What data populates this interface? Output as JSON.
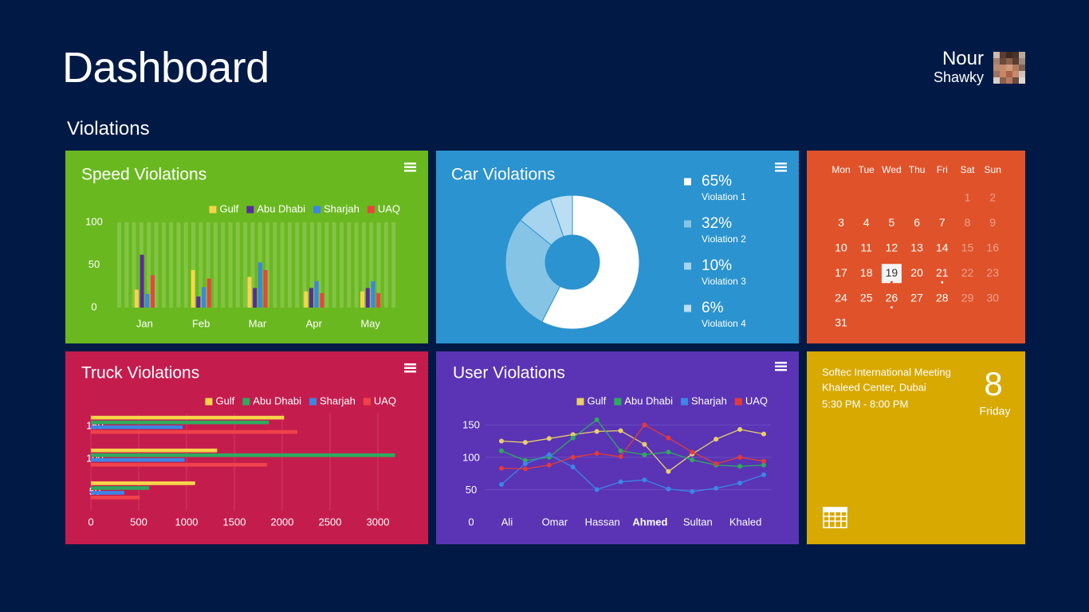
{
  "header": {
    "title": "Dashboard",
    "user_first_name": "Nour",
    "user_last_name": "Shawky",
    "section": "Violations"
  },
  "chart_data": [
    {
      "type": "bar",
      "title": "Speed Violations",
      "categories": [
        "Jan",
        "Feb",
        "Mar",
        "Apr",
        "May"
      ],
      "series": [
        {
          "name": "Gulf",
          "color": "#f7d54a",
          "values": [
            21,
            44,
            36,
            19,
            19
          ]
        },
        {
          "name": "Abu Dhabi",
          "color": "#5b2a9e",
          "values": [
            62,
            13,
            23,
            23,
            23
          ]
        },
        {
          "name": "Sharjah",
          "color": "#3b86e6",
          "values": [
            16,
            24,
            53,
            31,
            31
          ]
        },
        {
          "name": "UAQ",
          "color": "#e8453c",
          "values": [
            38,
            34,
            44,
            17,
            17
          ]
        }
      ],
      "ylim": [
        0,
        100
      ],
      "yticks": [
        0,
        50,
        100
      ]
    },
    {
      "type": "donut",
      "title": "Car Violations",
      "categories": [
        "Violation 1",
        "Violation 2",
        "Violation 3",
        "Violation 4"
      ],
      "values": [
        65,
        32,
        10,
        6
      ],
      "value_labels": [
        "65%",
        "32%",
        "10%",
        "6%"
      ],
      "colors": [
        "#ffffff",
        "#86c4e6",
        "#a6d3ee",
        "#bcdef3"
      ]
    },
    {
      "type": "hbar",
      "title": "Truck Violations",
      "categories": [
        "150",
        "100",
        "50"
      ],
      "series": [
        {
          "name": "Gulf",
          "color": "#f7d54a",
          "values": [
            2020,
            1320,
            1090
          ]
        },
        {
          "name": "Abu Dhabi",
          "color": "#2eaa5f",
          "values": [
            1860,
            3180,
            610
          ]
        },
        {
          "name": "Sharjah",
          "color": "#3b86e6",
          "values": [
            960,
            980,
            350
          ]
        },
        {
          "name": "UAQ",
          "color": "#f0424a",
          "values": [
            2160,
            1840,
            510
          ]
        }
      ],
      "xlim": [
        0,
        3200
      ],
      "xticks": [
        0,
        500,
        1000,
        1500,
        2000,
        2500,
        3000
      ],
      "grid": true
    },
    {
      "type": "line",
      "title": "User Violations",
      "categories": [
        "Ali",
        null,
        "Omar",
        null,
        "Hassan",
        null,
        "Ahmed",
        null,
        "Sultan",
        null,
        "Khaled",
        null
      ],
      "selected_category": 6,
      "series": [
        {
          "name": "Gulf",
          "color": "#e8cf6a",
          "values": [
            125,
            123,
            129,
            135,
            140,
            141,
            120,
            78,
            105,
            128,
            143,
            136
          ]
        },
        {
          "name": "Abu Dhabi",
          "color": "#2eaa5f",
          "values": [
            110,
            95,
            100,
            130,
            158,
            110,
            104,
            108,
            96,
            88,
            86,
            88
          ]
        },
        {
          "name": "Sharjah",
          "color": "#3b86e6",
          "values": [
            58,
            90,
            104,
            85,
            50,
            62,
            65,
            51,
            47,
            52,
            60,
            73
          ]
        },
        {
          "name": "UAQ",
          "color": "#e23a3a",
          "values": [
            83,
            82,
            88,
            100,
            106,
            101,
            150,
            130,
            108,
            90,
            100,
            94
          ]
        }
      ],
      "ylim": [
        0,
        170
      ],
      "yticks": [
        0,
        50,
        100,
        150
      ],
      "grid": true
    }
  ],
  "calendar": {
    "weekdays": [
      "Mon",
      "Tue",
      "Wed",
      "Thu",
      "Fri",
      "Sat",
      "Sun"
    ],
    "first_weekday": 5,
    "days": [
      1,
      2,
      3,
      4,
      5,
      6,
      7,
      8,
      9,
      10,
      11,
      12,
      13,
      14,
      15,
      16,
      17,
      18,
      19,
      20,
      21,
      22,
      23,
      24,
      25,
      26,
      27,
      28,
      29,
      30,
      31
    ],
    "today": 19,
    "marked_days": [
      19,
      21,
      26
    ]
  },
  "event": {
    "title": "Softec International Meeting",
    "location": "Khaleed Center, Dubai",
    "time": "5:30 PM - 8:00 PM",
    "day": 8,
    "weekday": "Friday"
  }
}
